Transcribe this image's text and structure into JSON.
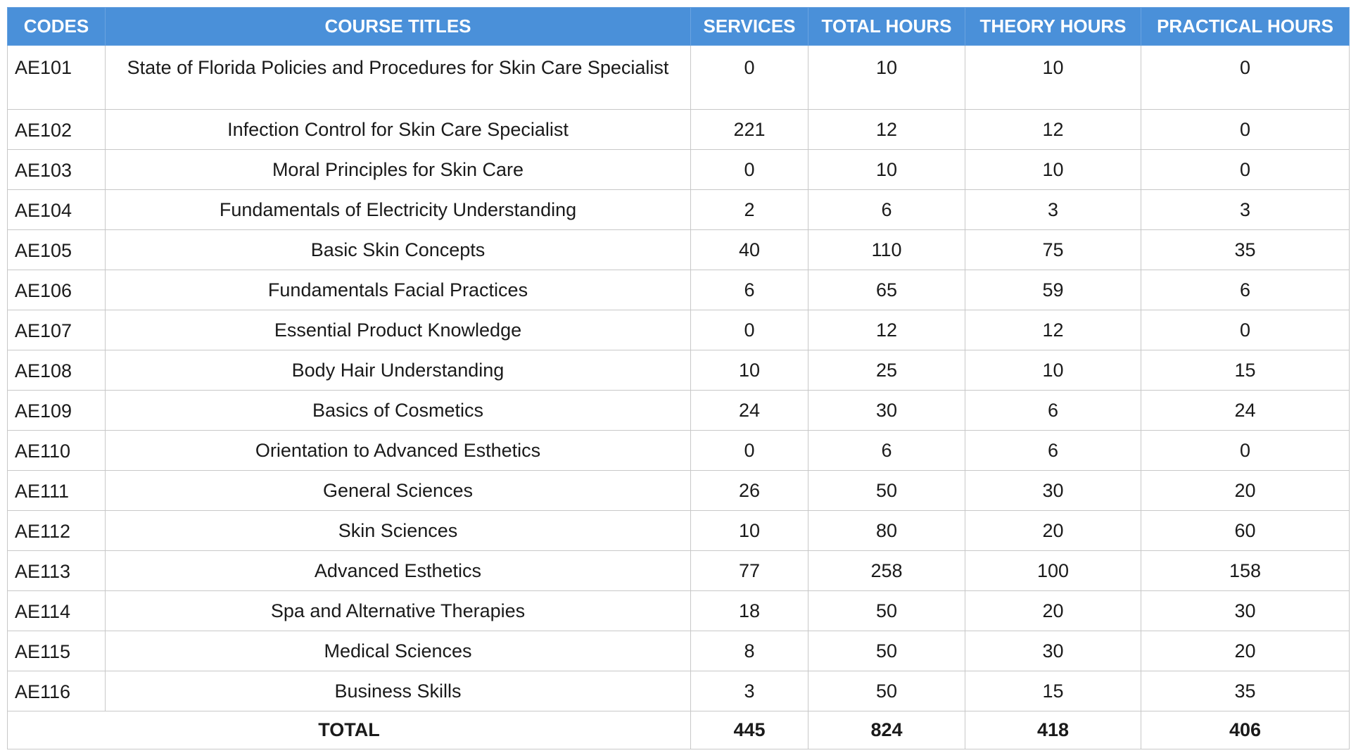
{
  "headers": {
    "code": "CODES",
    "title": "COURSE TITLES",
    "services": "SERVICES",
    "total_hours": "TOTAL HOURS",
    "theory_hours": "THEORY HOURS",
    "practical_hours": "PRACTICAL HOURS"
  },
  "rows": [
    {
      "code": "AE101",
      "title": "State of Florida Policies and Procedures for Skin Care Specialist",
      "services": "0",
      "total_hours": "10",
      "theory_hours": "10",
      "practical_hours": "0"
    },
    {
      "code": "AE102",
      "title": "Infection Control for Skin Care Specialist",
      "services": "221",
      "total_hours": "12",
      "theory_hours": "12",
      "practical_hours": "0"
    },
    {
      "code": "AE103",
      "title": "Moral Principles for Skin Care",
      "services": "0",
      "total_hours": "10",
      "theory_hours": "10",
      "practical_hours": "0"
    },
    {
      "code": "AE104",
      "title": "Fundamentals of Electricity Understanding",
      "services": "2",
      "total_hours": "6",
      "theory_hours": "3",
      "practical_hours": "3"
    },
    {
      "code": "AE105",
      "title": "Basic Skin Concepts",
      "services": "40",
      "total_hours": "110",
      "theory_hours": "75",
      "practical_hours": "35"
    },
    {
      "code": "AE106",
      "title": "Fundamentals Facial Practices",
      "services": "6",
      "total_hours": "65",
      "theory_hours": "59",
      "practical_hours": "6"
    },
    {
      "code": "AE107",
      "title": "Essential Product Knowledge",
      "services": "0",
      "total_hours": "12",
      "theory_hours": "12",
      "practical_hours": "0"
    },
    {
      "code": "AE108",
      "title": "Body Hair Understanding",
      "services": "10",
      "total_hours": "25",
      "theory_hours": "10",
      "practical_hours": "15"
    },
    {
      "code": "AE109",
      "title": "Basics of Cosmetics",
      "services": "24",
      "total_hours": "30",
      "theory_hours": "6",
      "practical_hours": "24"
    },
    {
      "code": "AE110",
      "title": "Orientation to Advanced Esthetics",
      "services": "0",
      "total_hours": "6",
      "theory_hours": "6",
      "practical_hours": "0"
    },
    {
      "code": "AE111",
      "title": "General Sciences",
      "services": "26",
      "total_hours": "50",
      "theory_hours": "30",
      "practical_hours": "20"
    },
    {
      "code": "AE112",
      "title": "Skin Sciences",
      "services": "10",
      "total_hours": "80",
      "theory_hours": "20",
      "practical_hours": "60"
    },
    {
      "code": "AE113",
      "title": "Advanced Esthetics",
      "services": "77",
      "total_hours": "258",
      "theory_hours": "100",
      "practical_hours": "158"
    },
    {
      "code": "AE114",
      "title": "Spa and Alternative Therapies",
      "services": "18",
      "total_hours": "50",
      "theory_hours": "20",
      "practical_hours": "30"
    },
    {
      "code": "AE115",
      "title": "Medical Sciences",
      "services": "8",
      "total_hours": "50",
      "theory_hours": "30",
      "practical_hours": "20"
    },
    {
      "code": "AE116",
      "title": "Business Skills",
      "services": "3",
      "total_hours": "50",
      "theory_hours": "15",
      "practical_hours": "35"
    }
  ],
  "totals": {
    "label": "TOTAL",
    "services": "445",
    "total_hours": "824",
    "theory_hours": "418",
    "practical_hours": "406"
  },
  "colors": {
    "header_background": "#4a90d9",
    "header_text": "#ffffff",
    "border": "#c8c8c8"
  }
}
